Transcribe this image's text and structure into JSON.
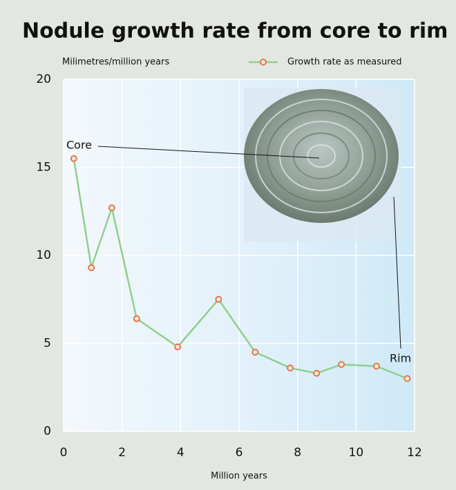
{
  "chart_data": {
    "type": "line",
    "title": "Nodule growth rate from core to rim",
    "y_label": "Milimetres/million years",
    "x_label": "Million years",
    "x": [
      0.35,
      0.95,
      1.65,
      2.5,
      3.9,
      5.3,
      6.55,
      7.75,
      8.65,
      9.5,
      10.7,
      11.75
    ],
    "series": [
      {
        "name": "Growth rate as measured",
        "color": "#8fcf8c",
        "marker_color": "#e2774f",
        "values": [
          15.5,
          9.3,
          12.7,
          6.4,
          4.8,
          7.5,
          4.5,
          3.6,
          3.3,
          3.8,
          3.7,
          3.0
        ]
      }
    ],
    "xlim": [
      0,
      12
    ],
    "xticks": [
      0,
      2,
      4,
      6,
      8,
      10,
      12
    ],
    "ylim": [
      0,
      20
    ],
    "yticks": [
      0,
      5,
      10,
      15,
      20
    ],
    "grid": true,
    "annotations": [
      "Core",
      "Rim"
    ]
  }
}
